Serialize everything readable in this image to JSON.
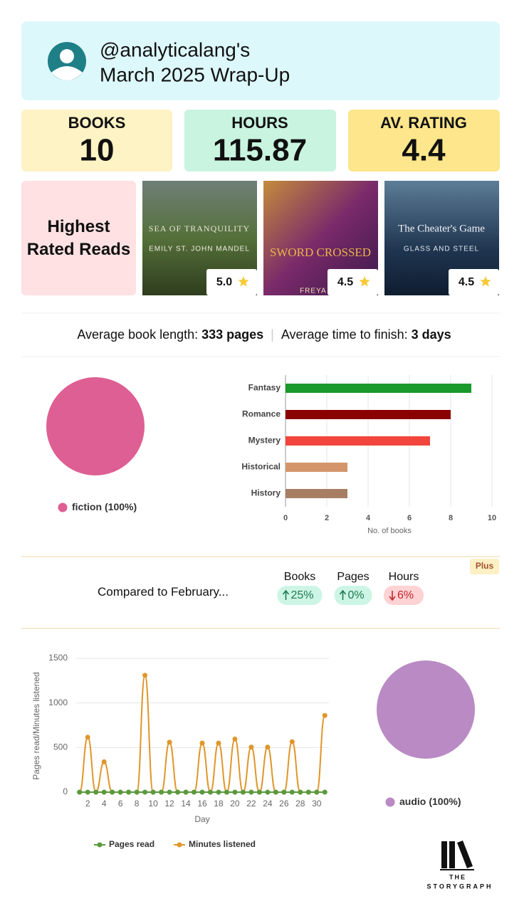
{
  "header": {
    "handle": "@analyticalang's",
    "subtitle": "March 2025 Wrap-Up"
  },
  "stats": [
    {
      "label": "BOOKS",
      "value": 10
    },
    {
      "label": "HOURS",
      "value": 115.87
    },
    {
      "label": "AV. RATING",
      "value": 4.4
    }
  ],
  "highest_rated": {
    "title": "Highest Rated Reads",
    "books": [
      {
        "title": "SEA OF TRANQUILITY",
        "author": "EMILY ST. JOHN MANDEL",
        "rating": "5.0"
      },
      {
        "title": "SWORD CROSSED",
        "author": "FREYA MA",
        "rating": "4.5"
      },
      {
        "title": "The Cheater's Game",
        "author": "GLASS AND STEEL",
        "rating": "4.5"
      }
    ]
  },
  "averages": [
    {
      "label": "Average book length: ",
      "value": "333 pages"
    },
    {
      "label": "Average time to finish: ",
      "value": "3 days"
    }
  ],
  "comparison": {
    "text": "Compared to ",
    "month": "February...",
    "badge": "Plus",
    "items": [
      {
        "label": "Books",
        "change": "25%",
        "direction": "up"
      },
      {
        "label": "Pages",
        "change": "0%",
        "direction": "up"
      },
      {
        "label": "Hours",
        "change": "6%",
        "direction": "down"
      }
    ]
  },
  "chart_data": [
    {
      "type": "pie",
      "categories": [
        "fiction"
      ],
      "values": [
        100
      ],
      "value_labels": [
        "(100%)"
      ],
      "colors": [
        "#de5f93"
      ]
    },
    {
      "type": "bar",
      "orientation": "horizontal",
      "categories": [
        "Fantasy",
        "Romance",
        "Mystery",
        "Historical",
        "History"
      ],
      "values": [
        9,
        8,
        7,
        3,
        3
      ],
      "colors": [
        "#1a9a2a",
        "#8b0000",
        "#f2453d",
        "#d4956a",
        "#a77e64"
      ],
      "xlabel": "No. of books",
      "xlim": [
        0,
        10
      ],
      "xticks": [
        0,
        2,
        4,
        6,
        8,
        10
      ],
      "grid": true
    },
    {
      "type": "line",
      "xlabel": "Day",
      "ylabel": "Pages read/Minutes listened",
      "x": [
        1,
        2,
        3,
        4,
        5,
        6,
        7,
        8,
        9,
        10,
        11,
        12,
        13,
        14,
        15,
        16,
        17,
        18,
        19,
        20,
        21,
        22,
        23,
        24,
        25,
        26,
        27,
        28,
        29,
        30,
        31
      ],
      "xlim": [
        0.5,
        31.5
      ],
      "xticks": [
        2,
        4,
        6,
        8,
        10,
        12,
        14,
        16,
        18,
        20,
        22,
        24,
        26,
        28,
        30
      ],
      "ylim": [
        0,
        1500
      ],
      "yticks": [
        0,
        500,
        1000,
        1500
      ],
      "grid": true,
      "series": [
        {
          "name": "Pages read",
          "color": "#5a9a3c",
          "values": [
            0,
            0,
            0,
            0,
            0,
            0,
            0,
            0,
            0,
            0,
            0,
            0,
            0,
            0,
            0,
            0,
            0,
            0,
            0,
            0,
            0,
            0,
            0,
            0,
            0,
            0,
            0,
            0,
            0,
            0,
            0
          ]
        },
        {
          "name": "Minutes listened",
          "color": "#e0962b",
          "values": [
            0,
            615,
            0,
            340,
            0,
            0,
            0,
            0,
            1310,
            0,
            0,
            560,
            0,
            0,
            0,
            550,
            0,
            550,
            0,
            595,
            0,
            505,
            0,
            505,
            0,
            0,
            565,
            0,
            0,
            0,
            860
          ]
        }
      ]
    },
    {
      "type": "pie",
      "categories": [
        "audio"
      ],
      "values": [
        100
      ],
      "value_labels": [
        "(100%)"
      ],
      "colors": [
        "#b98ac4"
      ]
    }
  ],
  "footer": {
    "the": "THE",
    "brand": "STORYGRAPH"
  }
}
